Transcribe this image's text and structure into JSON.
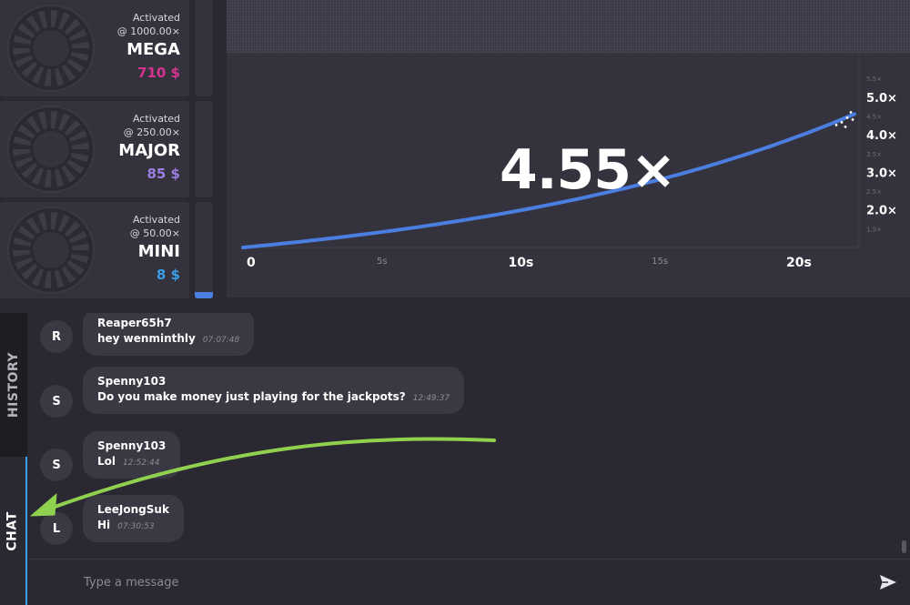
{
  "jackpots": [
    {
      "status": "Activated",
      "at": "@ 1000.00×",
      "name": "MEGA",
      "amount": "710 $",
      "color": "#d6338e",
      "fill": 0
    },
    {
      "status": "Activated",
      "at": "@ 250.00×",
      "name": "MAJOR",
      "amount": "85 $",
      "color": "#9a7fe0",
      "fill": 0
    },
    {
      "status": "Activated",
      "at": "@ 50.00×",
      "name": "MINI",
      "amount": "8 $",
      "color": "#3a9ee6",
      "fill": 0.07
    }
  ],
  "graph": {
    "multiplier": "4.55×",
    "x_ticks_major": [
      {
        "label": "0",
        "x": 0
      },
      {
        "label": "10s",
        "x": 10
      },
      {
        "label": "20s",
        "x": 20
      }
    ],
    "x_ticks_minor": [
      {
        "label": "5s",
        "x": 5
      },
      {
        "label": "15s",
        "x": 15
      }
    ],
    "y_ticks_major": [
      {
        "label": "5.0×",
        "y": 5.0
      },
      {
        "label": "4.0×",
        "y": 4.0
      },
      {
        "label": "3.0×",
        "y": 3.0
      },
      {
        "label": "2.0×",
        "y": 2.0
      }
    ],
    "y_ticks_minor": [
      {
        "label": "5.5×",
        "y": 5.5
      },
      {
        "label": "4.5×",
        "y": 4.5
      },
      {
        "label": "3.5×",
        "y": 3.5
      },
      {
        "label": "2.5×",
        "y": 2.5
      },
      {
        "label": "1.5×",
        "y": 1.5
      }
    ],
    "current_time": 22,
    "current_value": 4.55,
    "x_range": [
      0,
      22
    ],
    "y_range": [
      1.0,
      5.65
    ],
    "line_color": "#4a7ee0"
  },
  "tabs": {
    "history": "HISTORY",
    "chat": "CHAT"
  },
  "chat": {
    "messages": [
      {
        "avatar": "R",
        "user": "Reaper65h7",
        "text": "hey wenminthly",
        "time": "07:07:48"
      },
      {
        "avatar": "S",
        "user": "Spenny103",
        "text": "Do you make money just playing for the jackpots?",
        "time": "12:49:37"
      },
      {
        "avatar": "S",
        "user": "Spenny103",
        "text": "Lol",
        "time": "12:52:44"
      },
      {
        "avatar": "L",
        "user": "LeeJongSuk",
        "text": "Hi",
        "time": "07:30:53"
      }
    ],
    "input_placeholder": "Type a message",
    "send_icon": "send-icon"
  },
  "annotation": {
    "arrow_color": "#8fd14f"
  }
}
